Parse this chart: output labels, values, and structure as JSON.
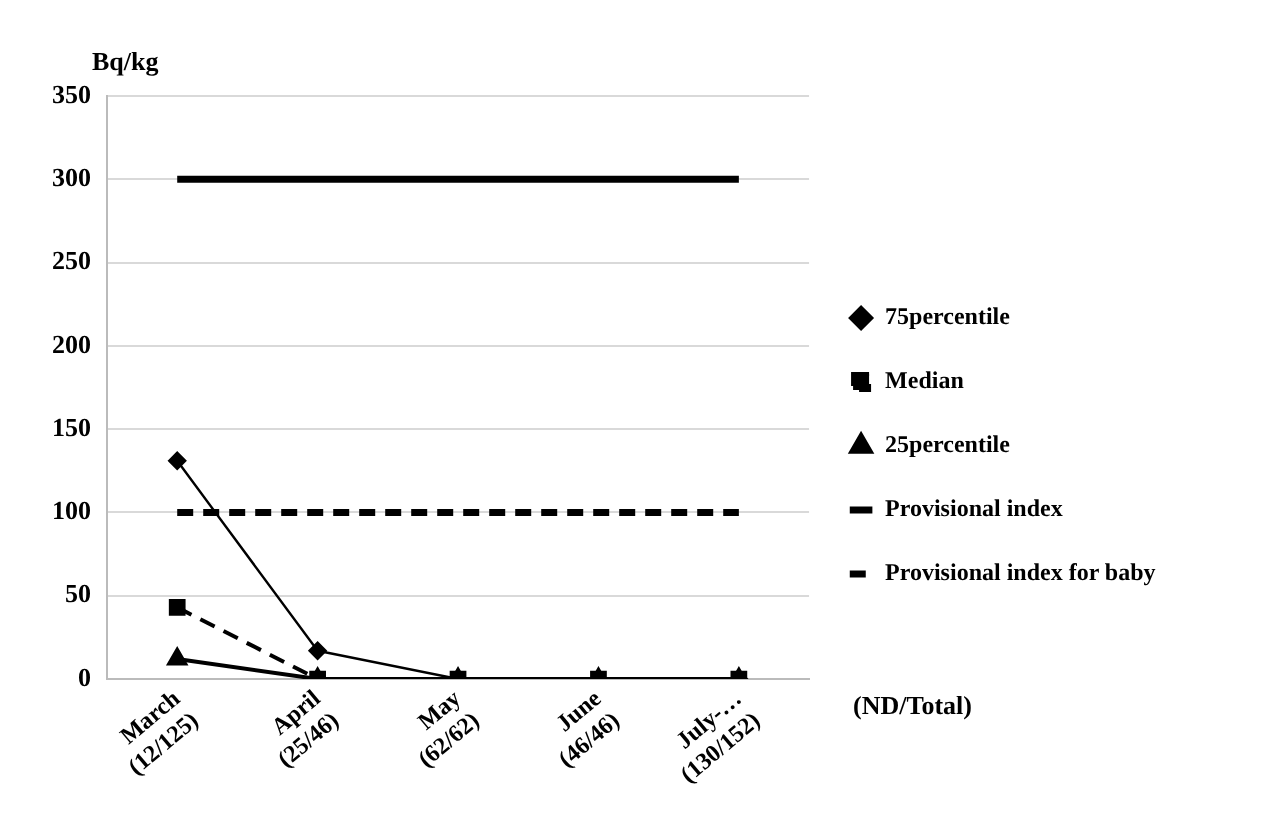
{
  "chart_data": {
    "type": "line",
    "ylabel": "Bq/kg",
    "xlabel": "(ND/Total)",
    "categories": [
      "March\n(12/125)",
      "April\n(25/46)",
      "May\n(62/62)",
      "June\n(46/46)",
      "July-…\n(130/152)"
    ],
    "series": [
      {
        "name": "75percentile",
        "color": "#000000",
        "values": [
          131,
          17,
          0,
          0,
          0
        ],
        "marker": "diamond",
        "line_style": "solid"
      },
      {
        "name": "Median",
        "color": "#000000",
        "values": [
          43,
          0,
          0,
          0,
          0
        ],
        "marker": "square",
        "line_style": "dashed"
      },
      {
        "name": "25percentile",
        "color": "#000000",
        "values": [
          12,
          0,
          0,
          0,
          0
        ],
        "marker": "triangle",
        "line_style": "solid"
      },
      {
        "name": "Provisional index",
        "color": "#000000",
        "values": [
          300,
          300,
          300,
          300,
          300
        ],
        "marker": "none",
        "line_style": "solid"
      },
      {
        "name": "Provisional index for baby",
        "color": "#000000",
        "values": [
          100,
          100,
          100,
          100,
          100
        ],
        "marker": "none",
        "line_style": "dashed"
      }
    ],
    "ylim": [
      0,
      350
    ],
    "yticks": [
      0,
      50,
      100,
      150,
      200,
      250,
      300,
      350
    ],
    "grid": "y",
    "legend": "right"
  }
}
